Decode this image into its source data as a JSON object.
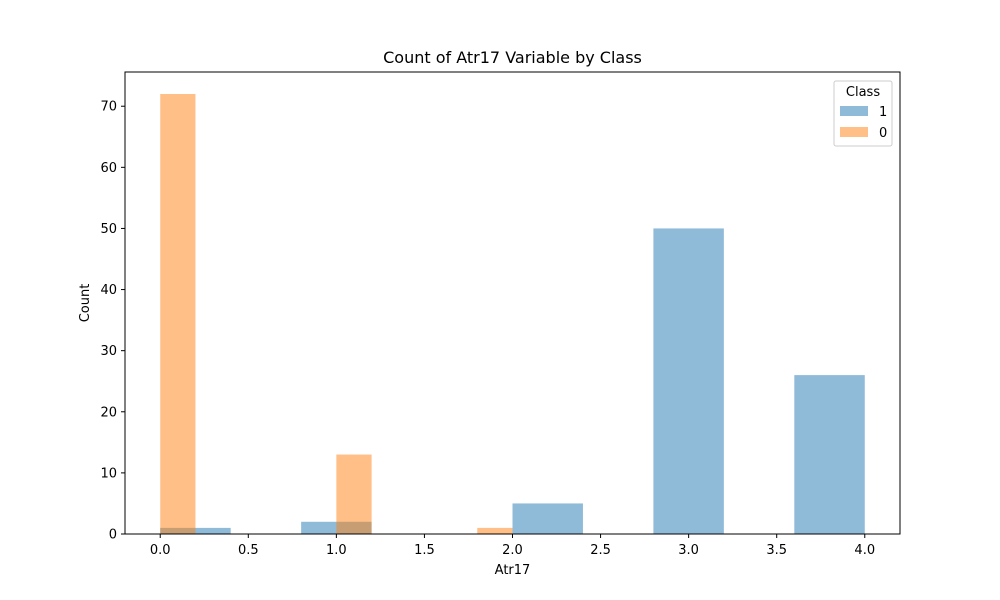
{
  "chart_data": {
    "type": "bar",
    "title": "Count of Atr17 Variable by Class",
    "xlabel": "Atr17",
    "ylabel": "Count",
    "xlim": [
      -0.2,
      4.2
    ],
    "ylim": [
      0,
      75.6
    ],
    "xticks": [
      0.0,
      0.5,
      1.0,
      1.5,
      2.0,
      2.5,
      3.0,
      3.5,
      4.0
    ],
    "xtick_labels": [
      "0.0",
      "0.5",
      "1.0",
      "1.5",
      "2.0",
      "2.5",
      "3.0",
      "3.5",
      "4.0"
    ],
    "yticks": [
      0,
      10,
      20,
      30,
      40,
      50,
      60,
      70
    ],
    "ytick_labels": [
      "0",
      "10",
      "20",
      "30",
      "40",
      "50",
      "60",
      "70"
    ],
    "grid": false,
    "legend": {
      "title": "Class",
      "placement": "upper right"
    },
    "series": [
      {
        "name": "1",
        "color": "#1f77b4",
        "opacity": 0.5,
        "bins": [
          {
            "x0": 0.0,
            "x1": 0.4,
            "count": 1
          },
          {
            "x0": 0.8,
            "x1": 1.2,
            "count": 2
          },
          {
            "x0": 2.0,
            "x1": 2.4,
            "count": 5
          },
          {
            "x0": 2.8,
            "x1": 3.2,
            "count": 50
          },
          {
            "x0": 3.6,
            "x1": 4.0,
            "count": 26
          }
        ]
      },
      {
        "name": "0",
        "color": "#ff7f0e",
        "opacity": 0.5,
        "bins": [
          {
            "x0": 0.0,
            "x1": 0.2,
            "count": 72
          },
          {
            "x0": 1.0,
            "x1": 1.2,
            "count": 13
          },
          {
            "x0": 1.8,
            "x1": 2.0,
            "count": 1
          }
        ]
      }
    ]
  }
}
